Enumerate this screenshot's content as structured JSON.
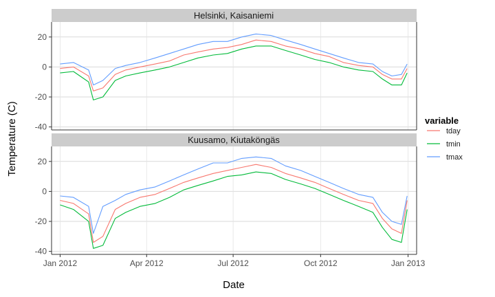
{
  "chart_data": {
    "type": "line",
    "xlabel": "Date",
    "ylabel": "Temperature (C)",
    "x_ticks": [
      "Jan 2012",
      "Apr 2012",
      "Jul 2012",
      "Oct 2012",
      "Jan 2013"
    ],
    "y_ticks": [
      "20",
      "0",
      "-20",
      "-40"
    ],
    "ylim": [
      -42,
      30
    ],
    "xlim": [
      "2011-12-23",
      "2013-01-10"
    ],
    "grid": true,
    "legend": {
      "title": "variable",
      "position": "right",
      "items": [
        {
          "name": "tday",
          "color": "#F8766D"
        },
        {
          "name": "tmin",
          "color": "#00BA38"
        },
        {
          "name": "tmax",
          "color": "#619CFF"
        }
      ]
    },
    "panels": [
      {
        "strip": "Helsinki, Kaisaniemi",
        "x": [
          "2012-01-01",
          "2012-01-15",
          "2012-01-31",
          "2012-02-05",
          "2012-02-15",
          "2012-02-28",
          "2012-03-10",
          "2012-03-25",
          "2012-04-10",
          "2012-04-25",
          "2012-05-10",
          "2012-05-25",
          "2012-06-10",
          "2012-06-25",
          "2012-07-10",
          "2012-07-25",
          "2012-08-10",
          "2012-08-25",
          "2012-09-10",
          "2012-09-25",
          "2012-10-10",
          "2012-10-25",
          "2012-11-10",
          "2012-11-25",
          "2012-12-05",
          "2012-12-15",
          "2012-12-25",
          "2012-12-31"
        ],
        "series": [
          {
            "name": "tday",
            "values": [
              -1,
              0,
              -6,
              -16,
              -14,
              -5,
              -2,
              0,
              2,
              4,
              8,
              10,
              12,
              13,
              15,
              18,
              17,
              14,
              12,
              9,
              7,
              3,
              1,
              0,
              -5,
              -8,
              -8,
              -1
            ]
          },
          {
            "name": "tmin",
            "values": [
              -4,
              -3,
              -10,
              -22,
              -20,
              -9,
              -6,
              -4,
              -2,
              0,
              3,
              6,
              8,
              9,
              12,
              14,
              14,
              11,
              8,
              5,
              3,
              0,
              -2,
              -3,
              -8,
              -12,
              -12,
              -4
            ]
          },
          {
            "name": "tmax",
            "values": [
              2,
              3,
              -2,
              -12,
              -9,
              -1,
              1,
              3,
              6,
              9,
              12,
              15,
              17,
              17,
              20,
              22,
              21,
              18,
              15,
              12,
              9,
              6,
              3,
              2,
              -3,
              -6,
              -5,
              2
            ]
          }
        ]
      },
      {
        "strip": "Kuusamo, Kiutaköngäs",
        "x": [
          "2012-01-01",
          "2012-01-15",
          "2012-01-31",
          "2012-02-05",
          "2012-02-15",
          "2012-02-28",
          "2012-03-10",
          "2012-03-25",
          "2012-04-10",
          "2012-04-25",
          "2012-05-10",
          "2012-05-25",
          "2012-06-10",
          "2012-06-25",
          "2012-07-10",
          "2012-07-25",
          "2012-08-10",
          "2012-08-25",
          "2012-09-10",
          "2012-09-25",
          "2012-10-10",
          "2012-10-25",
          "2012-11-10",
          "2012-11-25",
          "2012-12-05",
          "2012-12-15",
          "2012-12-25",
          "2012-12-31"
        ],
        "series": [
          {
            "name": "tday",
            "values": [
              -6,
              -8,
              -15,
              -34,
              -30,
              -12,
              -8,
              -4,
              -2,
              2,
              6,
              9,
              12,
              14,
              16,
              18,
              16,
              12,
              9,
              6,
              2,
              -2,
              -6,
              -8,
              -18,
              -25,
              -28,
              -6
            ]
          },
          {
            "name": "tmin",
            "values": [
              -9,
              -12,
              -20,
              -38,
              -36,
              -18,
              -14,
              -10,
              -8,
              -4,
              1,
              4,
              7,
              10,
              11,
              13,
              12,
              8,
              5,
              2,
              -2,
              -6,
              -10,
              -14,
              -24,
              -32,
              -34,
              -12
            ]
          },
          {
            "name": "tmax",
            "values": [
              -3,
              -4,
              -10,
              -28,
              -10,
              -6,
              -2,
              1,
              3,
              7,
              11,
              15,
              19,
              19,
              22,
              23,
              22,
              17,
              14,
              10,
              6,
              2,
              -2,
              -4,
              -14,
              -20,
              -22,
              -3
            ]
          }
        ]
      }
    ]
  }
}
